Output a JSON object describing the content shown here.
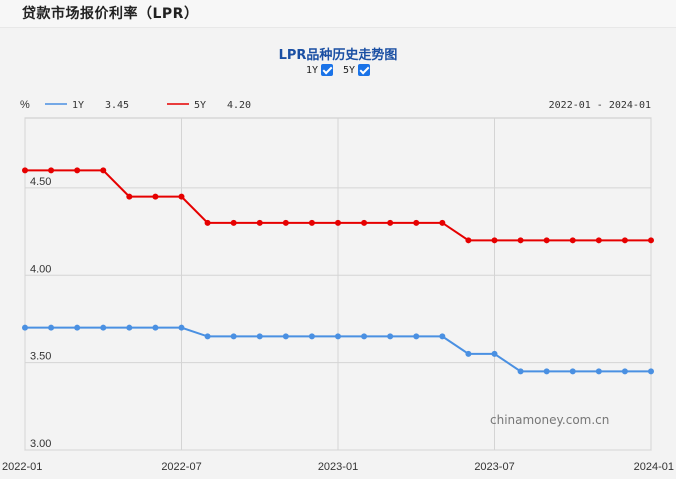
{
  "page": {
    "title": "贷款市场报价利率（LPR）"
  },
  "chart": {
    "title": "LPR品种历史走势图",
    "toggles": [
      {
        "label": "1Y",
        "checked": true
      },
      {
        "label": "5Y",
        "checked": true
      }
    ],
    "legend": {
      "unit": "%",
      "items": [
        {
          "name": "1Y",
          "value": "3.45",
          "color": "#4a90e2"
        },
        {
          "name": "5Y",
          "value": "4.20",
          "color": "#e60000"
        }
      ]
    },
    "date_range": "2022-01 - 2024-01",
    "watermark": "chinamoney.com.cn"
  },
  "chart_data": {
    "type": "line",
    "x": [
      "2022-01",
      "2022-02",
      "2022-03",
      "2022-04",
      "2022-05",
      "2022-06",
      "2022-07",
      "2022-08",
      "2022-09",
      "2022-10",
      "2022-11",
      "2022-12",
      "2023-01",
      "2023-02",
      "2023-03",
      "2023-04",
      "2023-05",
      "2023-06",
      "2023-07",
      "2023-08",
      "2023-09",
      "2023-10",
      "2023-11",
      "2023-12",
      "2024-01"
    ],
    "series": [
      {
        "name": "1Y",
        "color": "#4a90e2",
        "values": [
          3.7,
          3.7,
          3.7,
          3.7,
          3.7,
          3.7,
          3.7,
          3.65,
          3.65,
          3.65,
          3.65,
          3.65,
          3.65,
          3.65,
          3.65,
          3.65,
          3.65,
          3.55,
          3.55,
          3.45,
          3.45,
          3.45,
          3.45,
          3.45,
          3.45
        ]
      },
      {
        "name": "5Y",
        "color": "#e60000",
        "values": [
          4.6,
          4.6,
          4.6,
          4.6,
          4.45,
          4.45,
          4.45,
          4.3,
          4.3,
          4.3,
          4.3,
          4.3,
          4.3,
          4.3,
          4.3,
          4.3,
          4.3,
          4.2,
          4.2,
          4.2,
          4.2,
          4.2,
          4.2,
          4.2,
          4.2
        ]
      }
    ],
    "yticks": [
      "3.00",
      "3.50",
      "4.00",
      "4.50"
    ],
    "xticks": [
      "2022-01",
      "2022-07",
      "2023-01",
      "2023-07",
      "2024-01"
    ],
    "ylim": [
      3.0,
      4.9
    ],
    "grid": true
  }
}
